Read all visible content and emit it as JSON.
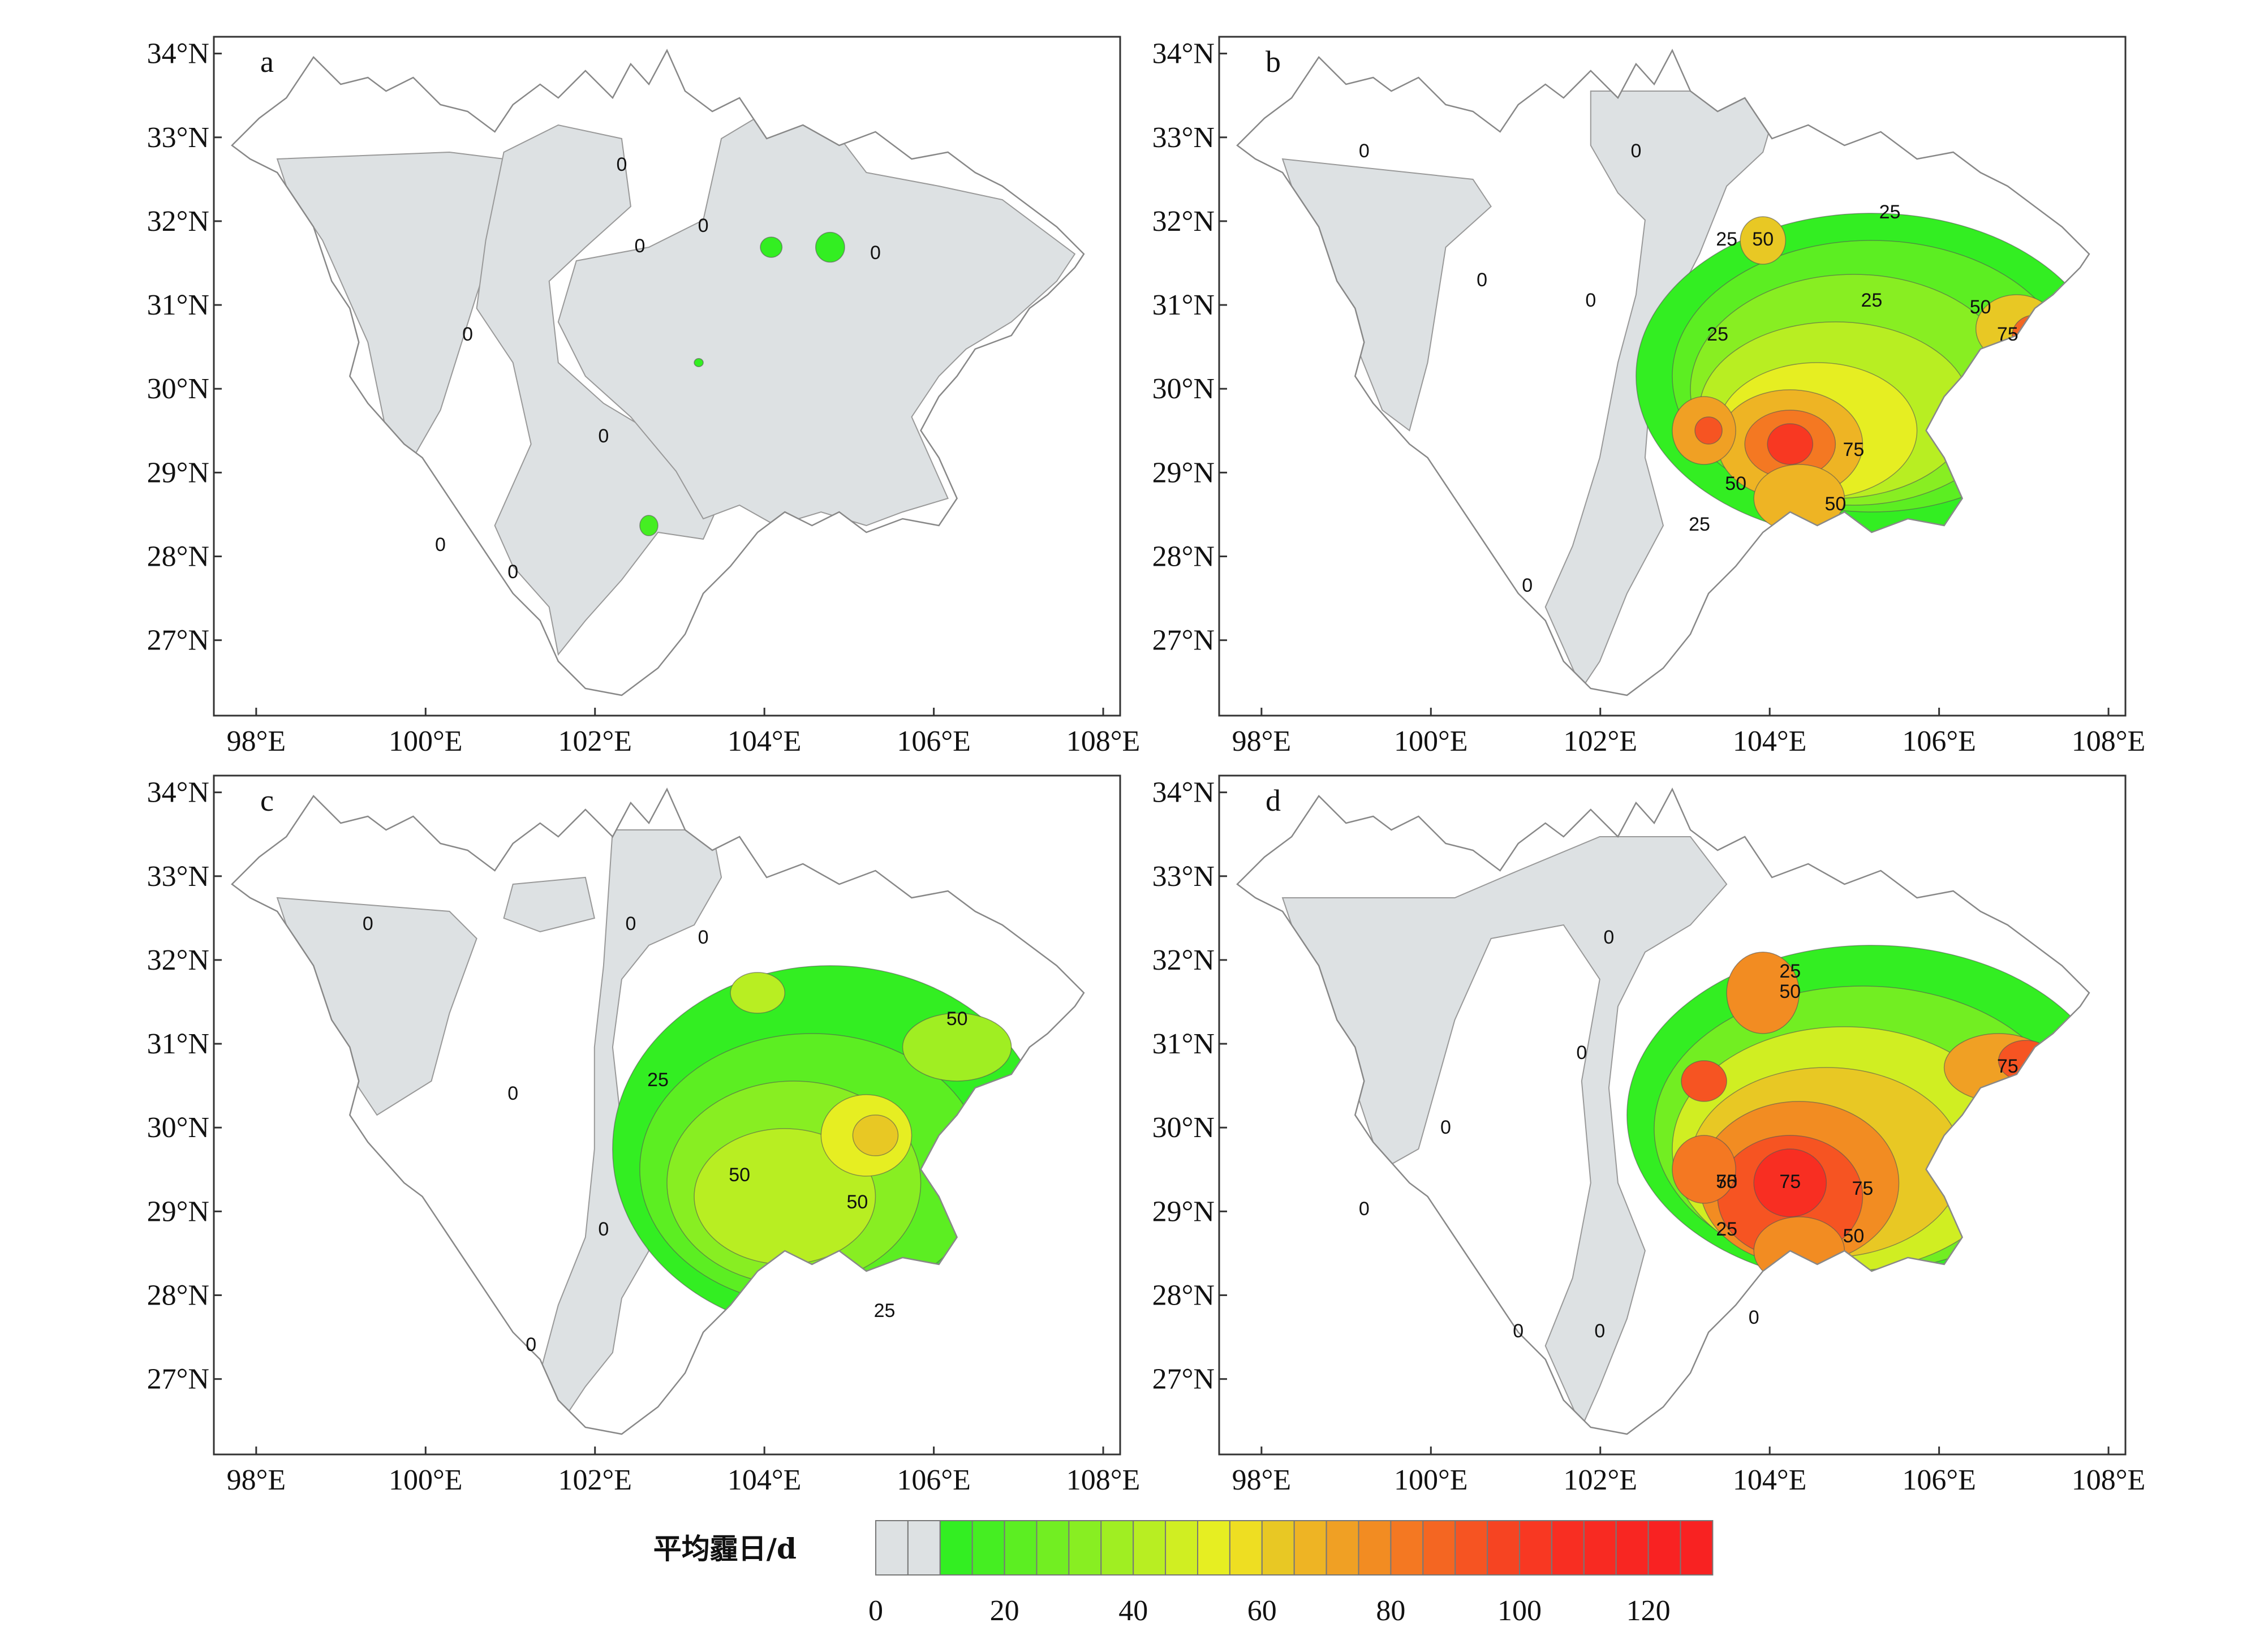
{
  "figure": {
    "panels": [
      {
        "letter": "a"
      },
      {
        "letter": "b"
      },
      {
        "letter": "c"
      },
      {
        "letter": "d"
      }
    ],
    "lon_ticks": [
      "98°E",
      "100°E",
      "102°E",
      "104°E",
      "106°E",
      "108°E"
    ],
    "lat_ticks": [
      "34°N",
      "33°N",
      "32°N",
      "31°N",
      "30°N",
      "29°N",
      "28°N",
      "27°N"
    ],
    "legend": {
      "title": "平均霾日/d",
      "tick_labels": [
        "0",
        "20",
        "40",
        "60",
        "80",
        "100",
        "120"
      ],
      "colors": [
        "#dde1e3",
        "#dde1e3",
        "#33ee22",
        "#45ee22",
        "#5cee22",
        "#72ee22",
        "#88ee22",
        "#a0ee22",
        "#b8ee22",
        "#d0ee22",
        "#e6ee22",
        "#eede22",
        "#e8c824",
        "#eeb424",
        "#f0a024",
        "#f28c22",
        "#f47822",
        "#f46622",
        "#f65422",
        "#f64422",
        "#f83822",
        "#f82e22",
        "#f82a22",
        "#f82622",
        "#f82222",
        "#f82222"
      ]
    }
  },
  "chart_data": {
    "type": "heatmap",
    "description_source": "four map panels of mean haze days over Sichuan Basin region",
    "xaxis": {
      "ticks": [
        "98°E",
        "100°E",
        "102°E",
        "104°E",
        "106°E",
        "108°E"
      ],
      "range": [
        97.5,
        108.2
      ]
    },
    "yaxis": {
      "ticks": [
        "27°N",
        "28°N",
        "29°N",
        "30°N",
        "31°N",
        "32°N",
        "33°N",
        "34°N"
      ],
      "range": [
        26.1,
        34.2
      ]
    },
    "colorbar": {
      "label": "平均霾日/d",
      "min": 0,
      "max": 130,
      "ticks": [
        0,
        20,
        40,
        60,
        80,
        100,
        120
      ]
    },
    "panels": [
      {
        "id": "a",
        "contour_labels": [
          "0",
          "0",
          "0",
          "0",
          "0",
          "0",
          "0",
          "0"
        ],
        "max_value": 10
      },
      {
        "id": "b",
        "contour_labels": [
          "0",
          "0",
          "0",
          "0",
          "0",
          "25",
          "25",
          "25",
          "25",
          "25",
          "50",
          "50",
          "50",
          "50",
          "75",
          "75"
        ],
        "max_value": 95
      },
      {
        "id": "c",
        "contour_labels": [
          "0",
          "0",
          "0",
          "0",
          "0",
          "0",
          "25",
          "25",
          "50",
          "50",
          "50"
        ],
        "max_value": 60
      },
      {
        "id": "d",
        "contour_labels": [
          "0",
          "0",
          "0",
          "0",
          "0",
          "0",
          "0",
          "25",
          "25",
          "50",
          "50",
          "50",
          "75",
          "75",
          "75",
          "75"
        ],
        "max_value": 120
      }
    ]
  }
}
